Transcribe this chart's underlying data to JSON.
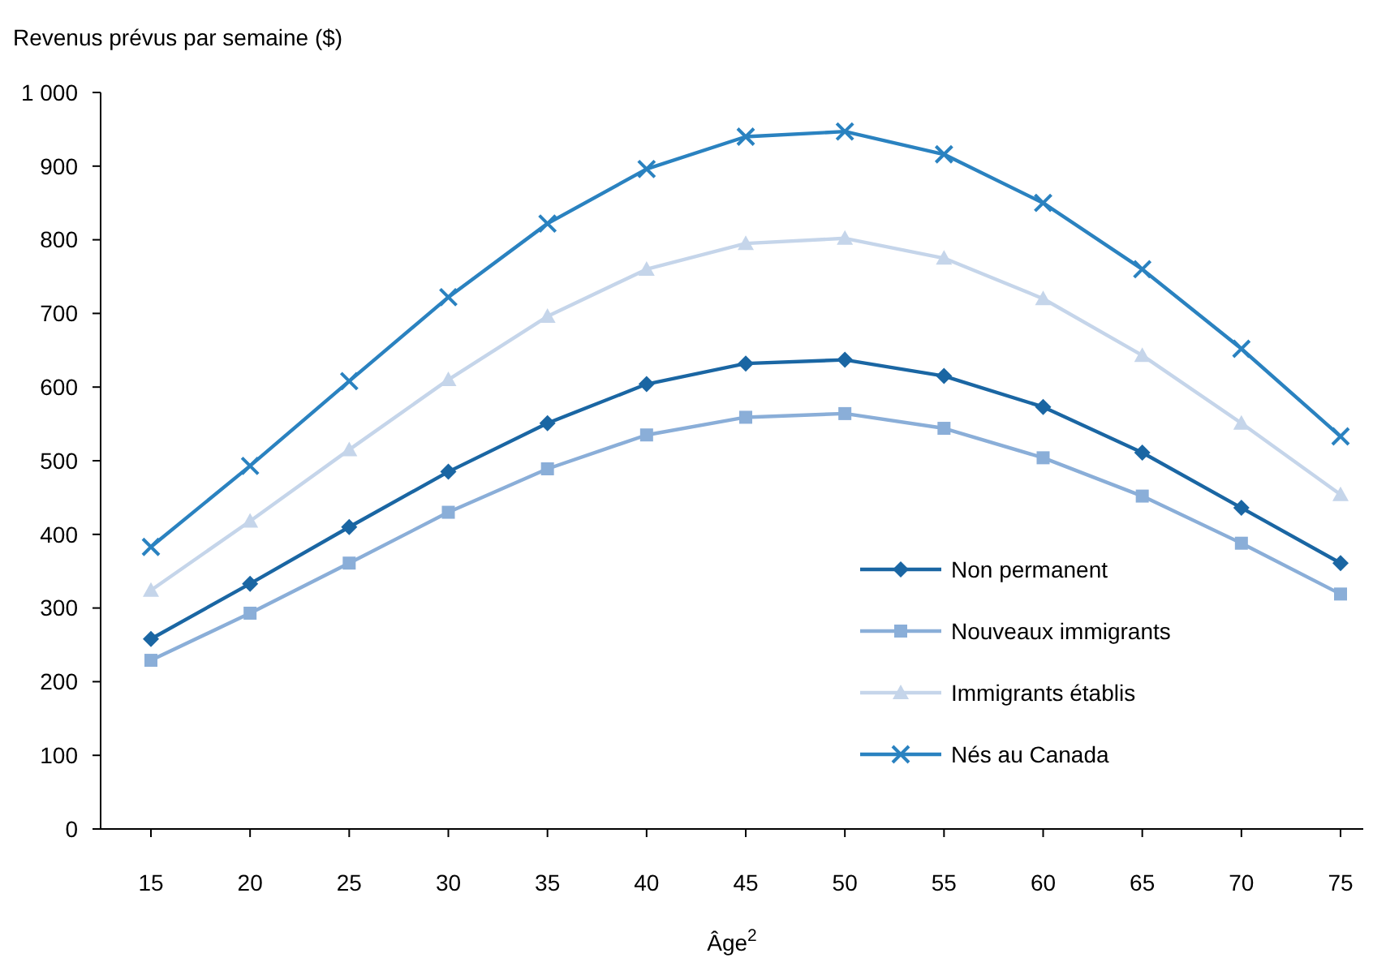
{
  "chart_data": {
    "type": "line",
    "ylabel": "Revenus prévus par semaine ($)",
    "xlabel": "Âge$^{2}$",
    "categories": [
      "15",
      "20",
      "25",
      "30",
      "35",
      "40",
      "45",
      "50",
      "55",
      "60",
      "65",
      "70",
      "75"
    ],
    "ylim": [
      0,
      1000
    ],
    "yticks": [
      0,
      100,
      200,
      300,
      400,
      500,
      600,
      700,
      800,
      900,
      {
        "value": 1000,
        "label": "1 000"
      }
    ],
    "legend": "bottom right",
    "grid": false,
    "series": [
      {
        "name": "Non permanent",
        "color": "#1a66a3",
        "marker": "diamond",
        "values": [
          258,
          333,
          410,
          485,
          551,
          604,
          632,
          637,
          615,
          573,
          511,
          436,
          361
        ]
      },
      {
        "name": "Nouveaux immigrants",
        "color": "#8aaed8",
        "marker": "square",
        "values": [
          229,
          293,
          361,
          430,
          489,
          535,
          559,
          564,
          544,
          504,
          452,
          388,
          319
        ]
      },
      {
        "name": "Immigrants établis",
        "color": "#c5d5ea",
        "marker": "triangle",
        "values": [
          324,
          418,
          515,
          610,
          696,
          760,
          795,
          802,
          775,
          720,
          643,
          551,
          454
        ]
      },
      {
        "name": "Nés au Canada",
        "color": "#2a82c0",
        "marker": "cross",
        "values": [
          383,
          493,
          608,
          722,
          822,
          896,
          940,
          947,
          916,
          850,
          760,
          652,
          533
        ]
      }
    ]
  }
}
